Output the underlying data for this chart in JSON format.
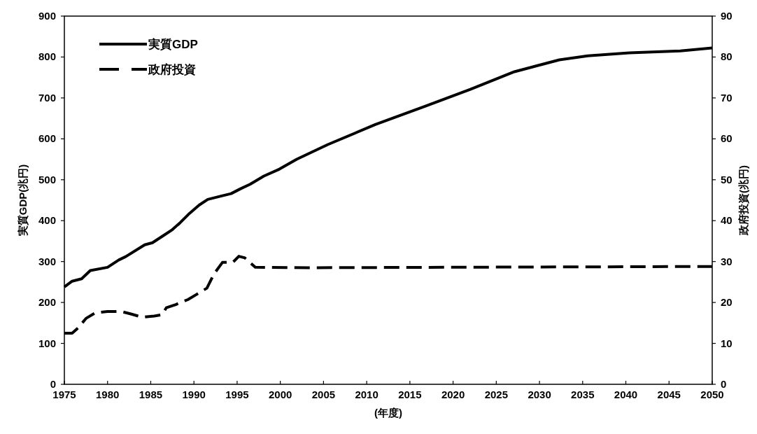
{
  "chart_data": {
    "type": "line",
    "xlabel": "(年度)",
    "ylabel": "実質GDP(兆円)",
    "y2label": "政府投資(兆円)",
    "legend": "top left",
    "xlim": [
      1975,
      2050
    ],
    "xticks": [
      1975,
      1980,
      1985,
      1990,
      1995,
      2000,
      2005,
      2010,
      2015,
      2020,
      2025,
      2030,
      2035,
      2040,
      2045,
      2050
    ],
    "ylim": [
      0,
      900
    ],
    "yticks": [
      0,
      100,
      200,
      300,
      400,
      500,
      600,
      700,
      800,
      900
    ],
    "y2lim": [
      0,
      90
    ],
    "y2ticks": [
      0,
      10,
      20,
      30,
      40,
      50,
      60,
      70,
      80,
      90
    ],
    "series": [
      {
        "name": "実質GDP",
        "color": "#000000",
        "line_style": "solid",
        "x": [
          1975,
          1975.9,
          1977,
          1978,
          1980,
          1981.3,
          1982.1,
          1984.3,
          1985.2,
          1986.5,
          1987.5,
          1988.4,
          1989.5,
          1990.6,
          1991.6,
          1993.3,
          1994.3,
          1995.4,
          1996.5,
          1998.1,
          1999.9,
          2001.9,
          2005.5,
          2011,
          2016.8,
          2022,
          2027.1,
          2032.3,
          2035.6,
          2040.4,
          2046.3,
          2050
        ],
        "values": [
          238,
          252,
          258,
          278,
          286,
          304,
          312,
          341,
          346,
          364,
          378,
          395,
          418,
          438,
          452,
          461,
          466,
          478,
          489,
          509,
          526,
          550,
          586,
          635,
          680,
          721,
          764,
          793,
          803,
          810,
          815,
          822
        ]
      },
      {
        "name": "政府投資",
        "color": "#000000",
        "line_style": "dashed",
        "axis": "y2",
        "x": [
          1975,
          1975.9,
          1976.6,
          1977.5,
          1978.6,
          1980,
          1981.6,
          1982.7,
          1984,
          1985.4,
          1986.3,
          1986.8,
          1987.9,
          1989.3,
          1990.4,
          1991.5,
          1992.3,
          1993.3,
          1994.5,
          1995.2,
          1995.9,
          1997.1,
          2003.4,
          2050
        ],
        "values": [
          12.5,
          12.5,
          13.8,
          16.1,
          17.5,
          17.8,
          17.8,
          17.2,
          16.4,
          16.7,
          17.0,
          18.7,
          19.5,
          20.7,
          22.1,
          23.5,
          26.9,
          29.8,
          29.8,
          31.3,
          30.9,
          28.6,
          28.5,
          28.8
        ]
      }
    ]
  }
}
